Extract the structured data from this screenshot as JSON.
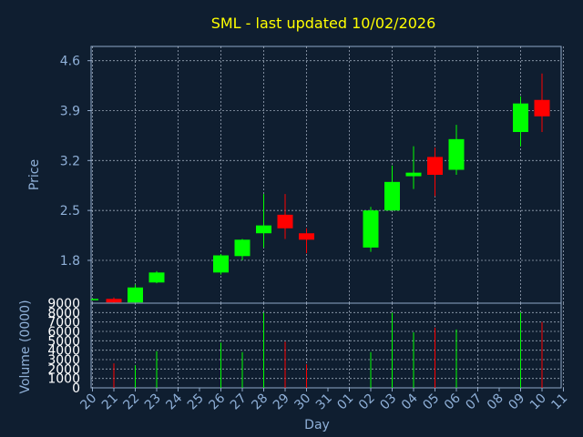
{
  "chart_data": {
    "type": "candlestick",
    "title": "SML - last updated 10/02/2026",
    "xlabel": "Day",
    "price_ylabel": "Price",
    "volume_ylabel": "Volume (0000)",
    "price_ylim": [
      1.2,
      4.8
    ],
    "price_ticks": [
      "1.8",
      "2.5",
      "3.2",
      "3.9",
      "4.6"
    ],
    "volume_ylim": [
      0,
      9000
    ],
    "volume_ticks": [
      "0",
      "1000",
      "2000",
      "3000",
      "4000",
      "5000",
      "6000",
      "7000",
      "8000",
      "9000"
    ],
    "x_labels": [
      "20",
      "21",
      "22",
      "23",
      "24",
      "25",
      "26",
      "27",
      "28",
      "29",
      "30",
      "31",
      "01",
      "02",
      "03",
      "04",
      "05",
      "06",
      "07",
      "08",
      "09",
      "10",
      "11"
    ],
    "grid": true,
    "up_color": "#00ff00",
    "down_color": "#ff0000",
    "candles": [
      {
        "day": "20",
        "open": 1.25,
        "close": 1.26,
        "high": 1.26,
        "low": 1.25,
        "volume": 0
      },
      {
        "day": "21",
        "open": 1.26,
        "close": 1.21,
        "high": 1.28,
        "low": 1.2,
        "volume": 2600
      },
      {
        "day": "22",
        "open": 1.21,
        "close": 1.42,
        "high": 1.46,
        "low": 1.2,
        "volume": 2400
      },
      {
        "day": "23",
        "open": 1.49,
        "close": 1.63,
        "high": 1.65,
        "low": 1.48,
        "volume": 3900
      },
      {
        "day": "26",
        "open": 1.63,
        "close": 1.87,
        "high": 1.89,
        "low": 1.6,
        "volume": 4800
      },
      {
        "day": "27",
        "open": 1.86,
        "close": 2.09,
        "high": 2.1,
        "low": 1.8,
        "volume": 3800
      },
      {
        "day": "28",
        "open": 2.18,
        "close": 2.29,
        "high": 2.73,
        "low": 1.98,
        "volume": 8000
      },
      {
        "day": "29",
        "open": 2.44,
        "close": 2.25,
        "high": 2.73,
        "low": 2.1,
        "volume": 4900
      },
      {
        "day": "30",
        "open": 2.18,
        "close": 2.09,
        "high": 2.25,
        "low": 1.9,
        "volume": 2500
      },
      {
        "day": "02",
        "open": 1.98,
        "close": 2.5,
        "high": 2.55,
        "low": 1.92,
        "volume": 3800
      },
      {
        "day": "03",
        "open": 2.5,
        "close": 2.9,
        "high": 3.13,
        "low": 2.5,
        "volume": 8000
      },
      {
        "day": "04",
        "open": 2.98,
        "close": 3.03,
        "high": 3.4,
        "low": 2.8,
        "volume": 5900
      },
      {
        "day": "05",
        "open": 3.25,
        "close": 3.0,
        "high": 3.38,
        "low": 2.7,
        "volume": 6400
      },
      {
        "day": "06",
        "open": 3.07,
        "close": 3.5,
        "high": 3.7,
        "low": 3.0,
        "volume": 6200
      },
      {
        "day": "09",
        "open": 3.6,
        "close": 4.0,
        "high": 4.1,
        "low": 3.4,
        "volume": 8000
      },
      {
        "day": "10",
        "open": 4.05,
        "close": 3.82,
        "high": 4.42,
        "low": 3.6,
        "volume": 7000
      }
    ]
  }
}
